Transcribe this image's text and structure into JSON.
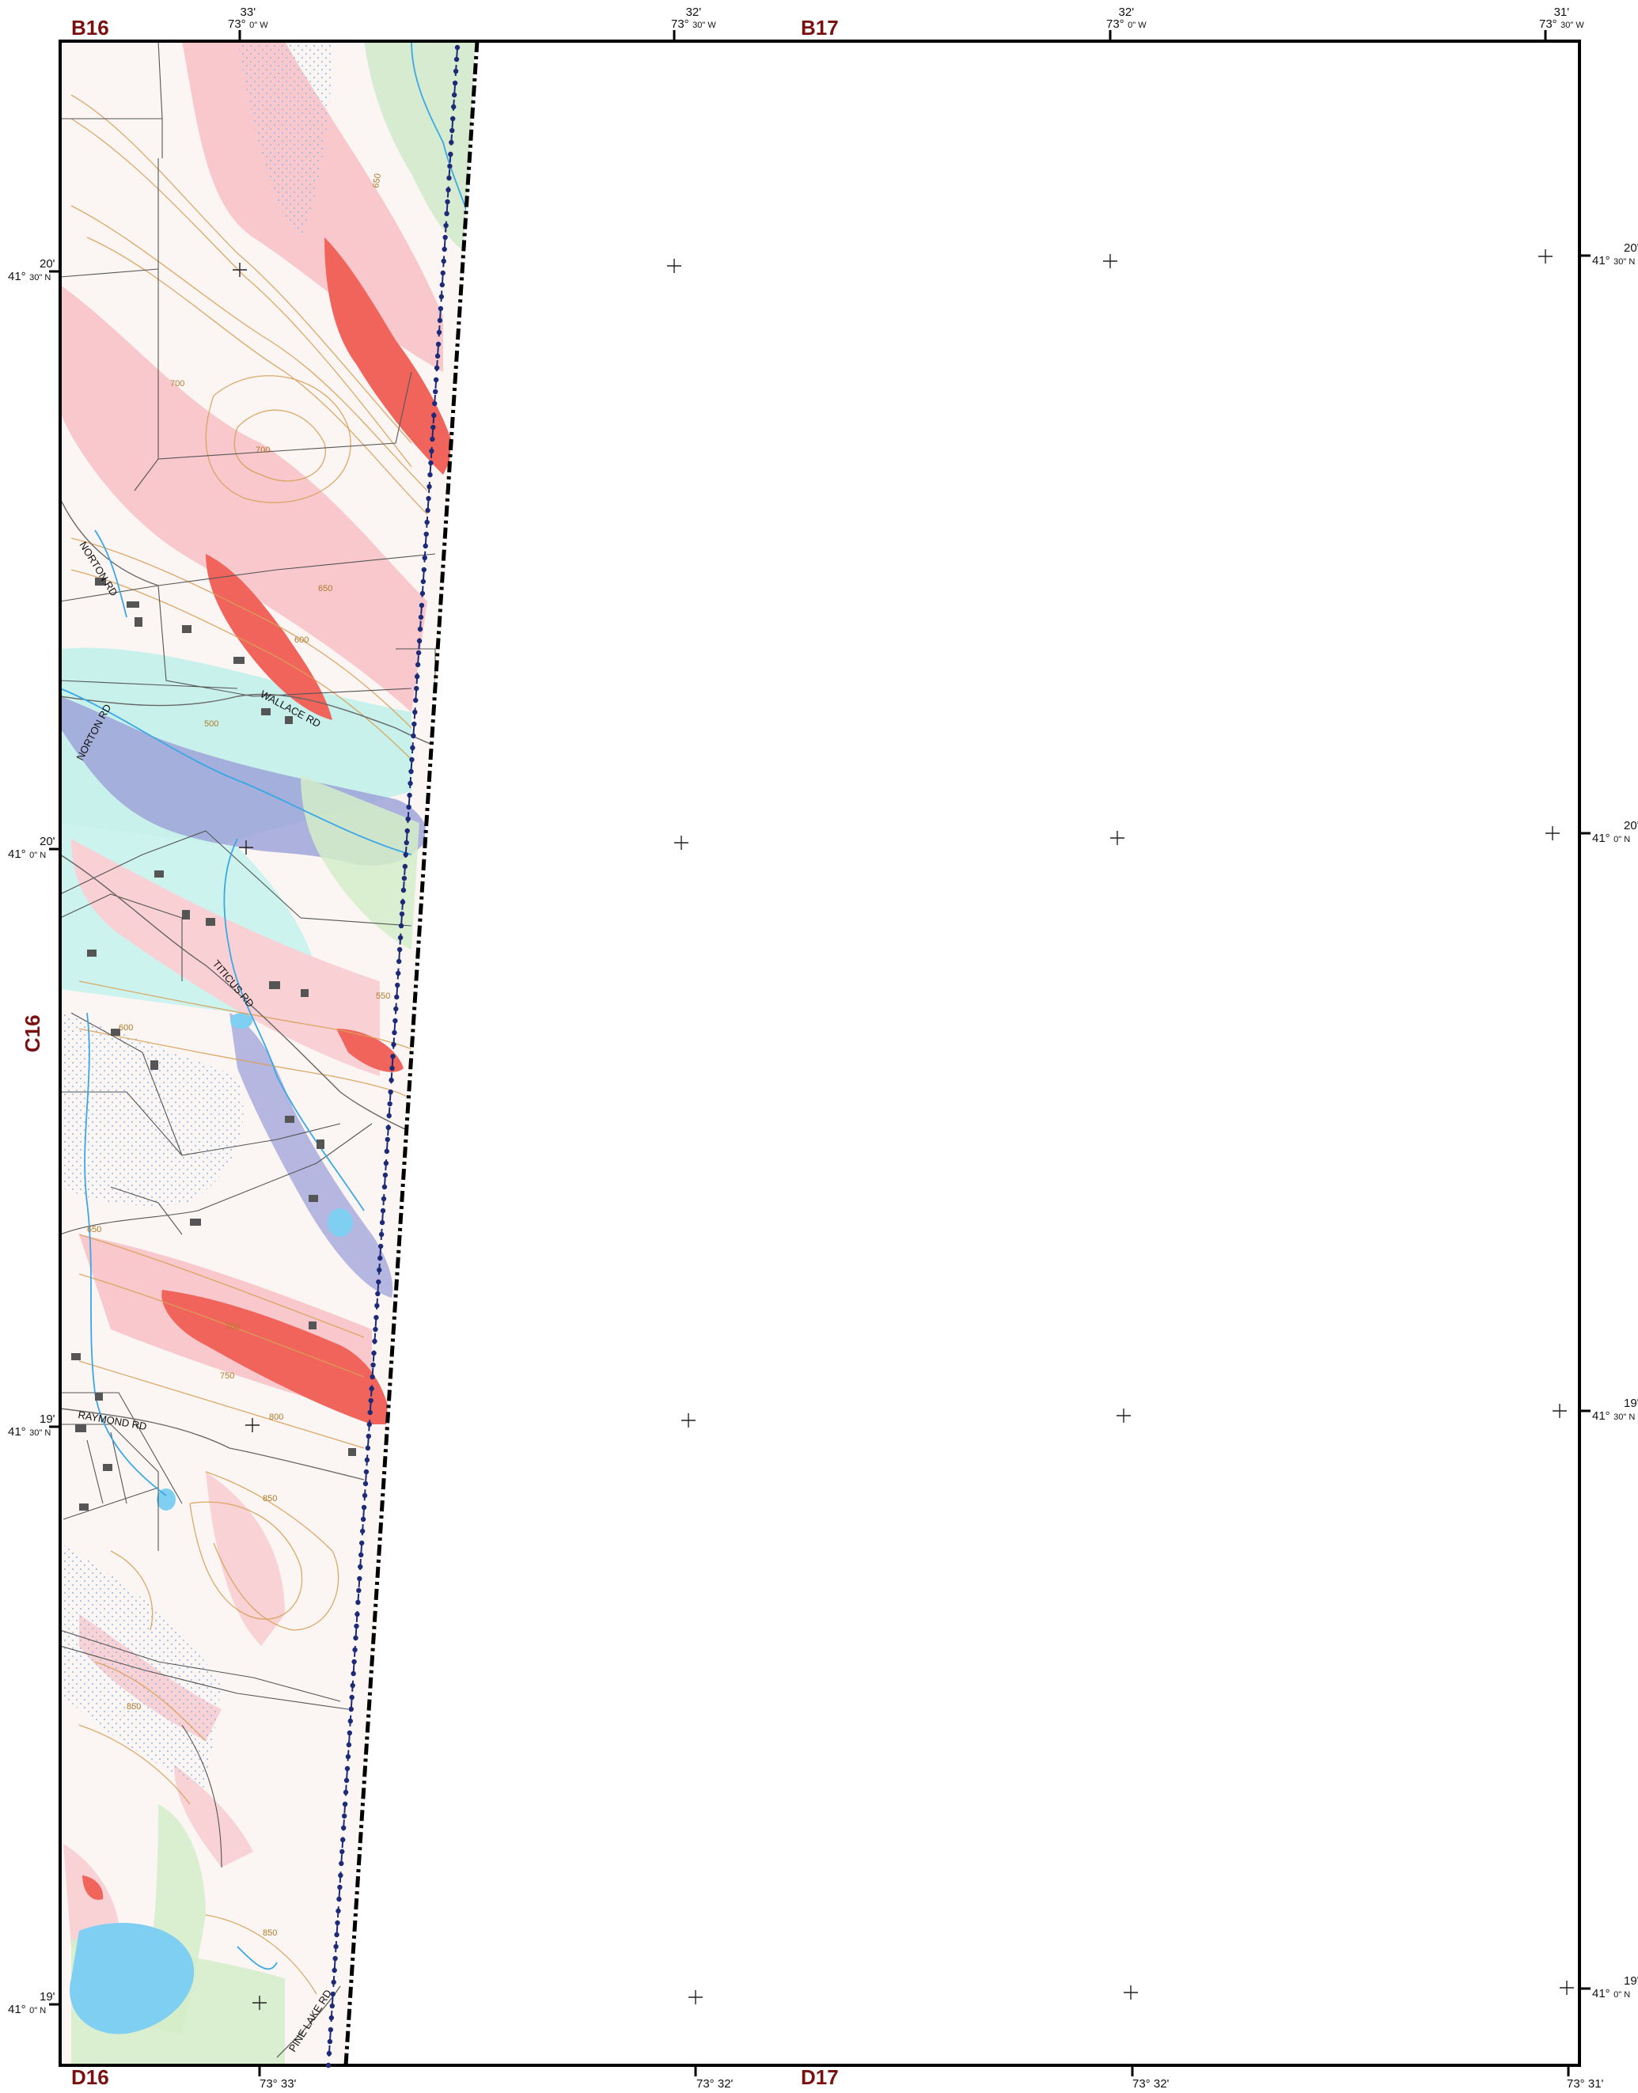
{
  "sheet_labels": {
    "top_left": "B16",
    "top_center": "B17",
    "left_side": "C16",
    "bottom_left": "D16",
    "bottom_center": "D17"
  },
  "top_ticks": [
    {
      "minutes": "33'",
      "deg": "73°",
      "sec": "0\" W"
    },
    {
      "minutes": "32'",
      "deg": "73°",
      "sec": "30\" W"
    },
    {
      "minutes": "32'",
      "deg": "73°",
      "sec": "0\" W"
    },
    {
      "minutes": "31'",
      "deg": "73°",
      "sec": "30\" W"
    }
  ],
  "bottom_ticks": [
    {
      "label": "73° 33'"
    },
    {
      "label": "73° 32'"
    },
    {
      "label": "73° 32'"
    },
    {
      "label": "73° 31'"
    }
  ],
  "lat_ticks_left": [
    {
      "minutes": "20'",
      "deg": "41°",
      "sec": "30\" N"
    },
    {
      "minutes": "20'",
      "deg": "41°",
      "sec": "0\" N"
    },
    {
      "minutes": "19'",
      "deg": "41°",
      "sec": "30\" N"
    },
    {
      "minutes": "19'",
      "deg": "41°",
      "sec": "0\" N"
    }
  ],
  "lat_ticks_right": [
    {
      "minutes": "20'",
      "deg": "41°",
      "sec": "30\" N"
    },
    {
      "minutes": "20'",
      "deg": "41°",
      "sec": "0\" N"
    },
    {
      "minutes": "19'",
      "deg": "41°",
      "sec": "30\" N"
    },
    {
      "minutes": "19'",
      "deg": "41°",
      "sec": "0\" N"
    }
  ],
  "roads": [
    "NORTON RD",
    "WALLACE RD",
    "NORTON RD",
    "TITICUS RD",
    "RAYMOND RD",
    "PINE LAKE RD"
  ],
  "contour_labels": [
    "650",
    "700",
    "700",
    "650",
    "600",
    "500",
    "550",
    "600",
    "650",
    "700",
    "750",
    "800",
    "850",
    "850",
    "850"
  ],
  "colors": {
    "frame": "#000000",
    "sheet_label": "#7a1010",
    "slope_pink": "#f8c8cc",
    "slope_red": "#f0645c",
    "wetland_green": "#cfe9c8",
    "floodplain_blue": "#9ea4d8",
    "aquifer_cyan": "#c8f1ec",
    "water": "#7fcff2",
    "contour": "#d9a057",
    "parcel": "#555555",
    "building": "#555555",
    "town_line": "#1c2a78"
  }
}
